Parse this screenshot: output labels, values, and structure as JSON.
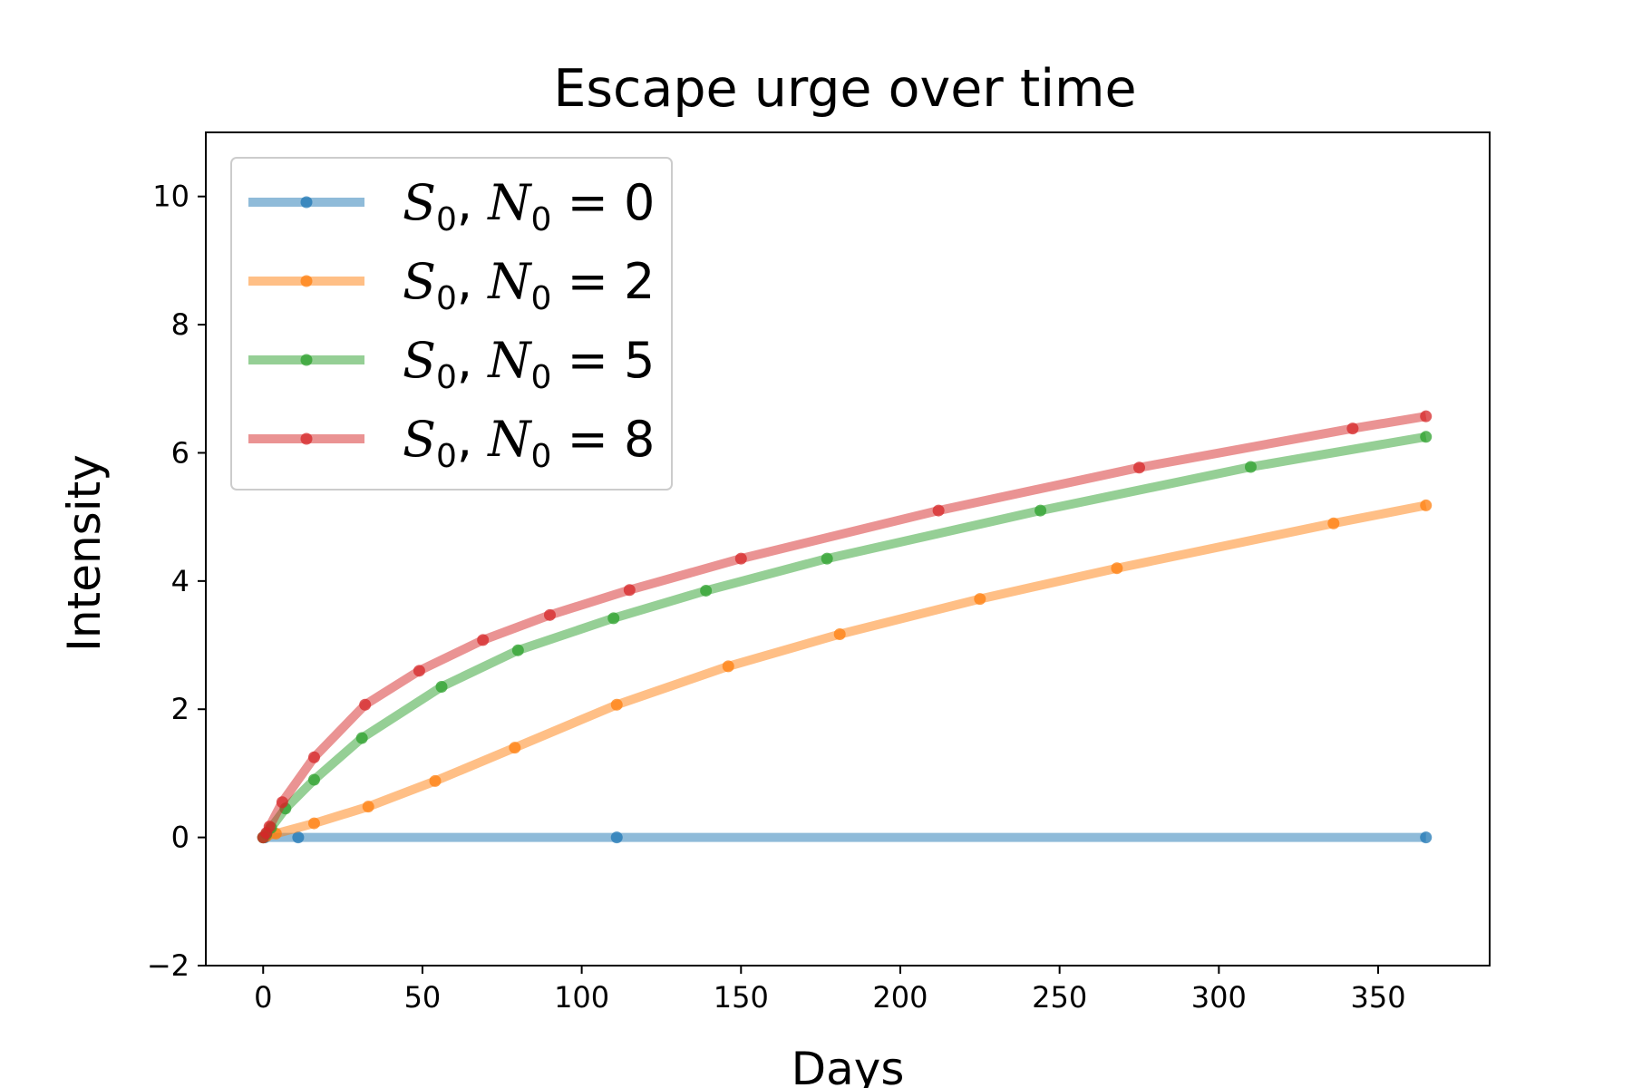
{
  "chart_data": {
    "type": "line",
    "title": "Escape urge over time",
    "xlabel": "Days",
    "ylabel": "Intensity",
    "xlim": [
      -18,
      385
    ],
    "ylim": [
      -2,
      11
    ],
    "xticks": [
      0,
      50,
      100,
      150,
      200,
      250,
      300,
      350
    ],
    "yticks": [
      -2,
      0,
      2,
      4,
      6,
      8,
      10
    ],
    "grid": false,
    "legend_position": "upper-left",
    "series": [
      {
        "name": "S_0, N_0 = 0",
        "legend_lhs": "S",
        "legend_rhs": "= 0",
        "color": "#1f77b4",
        "x": [
          0,
          0.5,
          11,
          111,
          365
        ],
        "y": [
          0,
          0,
          0,
          0,
          0
        ]
      },
      {
        "name": "S_0, N_0 = 2",
        "legend_lhs": "S",
        "legend_rhs": "= 2",
        "color": "#ff7f0e",
        "x": [
          0,
          1,
          4,
          16,
          33,
          54,
          79,
          111,
          146,
          181,
          225,
          268,
          336,
          365
        ],
        "y": [
          0,
          0.02,
          0.06,
          0.22,
          0.48,
          0.88,
          1.4,
          2.07,
          2.67,
          3.17,
          3.72,
          4.2,
          4.9,
          5.18
        ]
      },
      {
        "name": "S_0, N_0 = 5",
        "legend_lhs": "S",
        "legend_rhs": "= 5",
        "color": "#2ca02c",
        "x": [
          0,
          1,
          2.5,
          7,
          16,
          31,
          56,
          80,
          110,
          139,
          177,
          244,
          310,
          365
        ],
        "y": [
          0,
          0.05,
          0.15,
          0.45,
          0.9,
          1.55,
          2.35,
          2.92,
          3.42,
          3.85,
          4.35,
          5.1,
          5.78,
          6.25
        ]
      },
      {
        "name": "S_0, N_0 = 8",
        "legend_lhs": "S",
        "legend_rhs": "= 8",
        "color": "#d62728",
        "x": [
          0,
          1,
          2,
          6,
          16,
          32,
          49,
          69,
          90,
          115,
          150,
          212,
          275,
          342,
          365
        ],
        "y": [
          0,
          0.07,
          0.17,
          0.55,
          1.25,
          2.07,
          2.6,
          3.08,
          3.47,
          3.86,
          4.35,
          5.1,
          5.77,
          6.38,
          6.57
        ]
      }
    ]
  }
}
